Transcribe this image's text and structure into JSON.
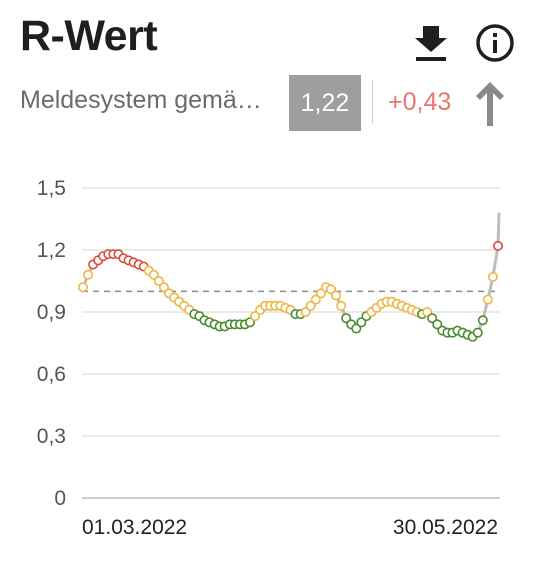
{
  "header": {
    "title": "R-Wert",
    "subtitle": "Meldesystem gemä…",
    "current_value": "1,22",
    "delta": "+0,43",
    "download_icon": "download-icon",
    "info_icon": "info-icon",
    "trend_icon": "arrow-up-icon"
  },
  "colors": {
    "red": "#d94a3d",
    "orange": "#f0b441",
    "green": "#4a8a2a",
    "grey_line": "#bdbdbd",
    "delta": "#e8766c"
  },
  "chart_data": {
    "type": "scatter",
    "title": "",
    "xlabel": "",
    "ylabel": "",
    "ylim": [
      0,
      1.5
    ],
    "y_ticks": [
      "0",
      "0,3",
      "0,6",
      "0,9",
      "1,2",
      "1,5"
    ],
    "x_tick_labels": [
      "01.03.2022",
      "30.05.2022"
    ],
    "reference_line": 1.0,
    "grid": true,
    "series": [
      {
        "values": [
          1.02,
          1.08,
          1.13,
          1.15,
          1.17,
          1.18,
          1.18,
          1.18,
          1.16,
          1.15,
          1.14,
          1.13,
          1.12,
          1.1,
          1.08,
          1.05,
          1.02,
          0.99,
          0.97,
          0.95,
          0.93,
          0.91,
          0.89,
          0.88,
          0.86,
          0.85,
          0.84,
          0.83,
          0.83,
          0.84,
          0.84,
          0.84,
          0.84,
          0.85,
          0.88,
          0.91,
          0.93,
          0.93,
          0.93,
          0.93,
          0.92,
          0.91,
          0.89,
          0.89,
          0.9,
          0.93,
          0.96,
          0.99,
          1.02,
          1.01,
          0.98,
          0.93,
          0.87,
          0.84,
          0.82,
          0.85,
          0.88,
          0.9,
          0.92,
          0.94,
          0.95,
          0.95,
          0.94,
          0.93,
          0.92,
          0.91,
          0.9,
          0.89,
          0.9,
          0.87,
          0.84,
          0.81,
          0.8,
          0.8,
          0.81,
          0.8,
          0.79,
          0.78,
          0.8,
          0.86,
          0.96,
          1.07,
          1.22
        ],
        "categories": [
          "o",
          "o",
          "r",
          "r",
          "r",
          "r",
          "r",
          "r",
          "r",
          "r",
          "r",
          "r",
          "r",
          "o",
          "o",
          "o",
          "o",
          "o",
          "o",
          "o",
          "o",
          "o",
          "g",
          "g",
          "g",
          "g",
          "g",
          "g",
          "g",
          "g",
          "g",
          "g",
          "g",
          "g",
          "o",
          "o",
          "o",
          "o",
          "o",
          "o",
          "o",
          "o",
          "g",
          "g",
          "o",
          "o",
          "o",
          "o",
          "o",
          "o",
          "o",
          "o",
          "g",
          "g",
          "g",
          "g",
          "g",
          "o",
          "o",
          "o",
          "o",
          "o",
          "o",
          "o",
          "o",
          "o",
          "o",
          "g",
          "o",
          "g",
          "g",
          "g",
          "g",
          "g",
          "g",
          "g",
          "g",
          "g",
          "g",
          "g",
          "o",
          "o",
          "r"
        ]
      }
    ]
  }
}
